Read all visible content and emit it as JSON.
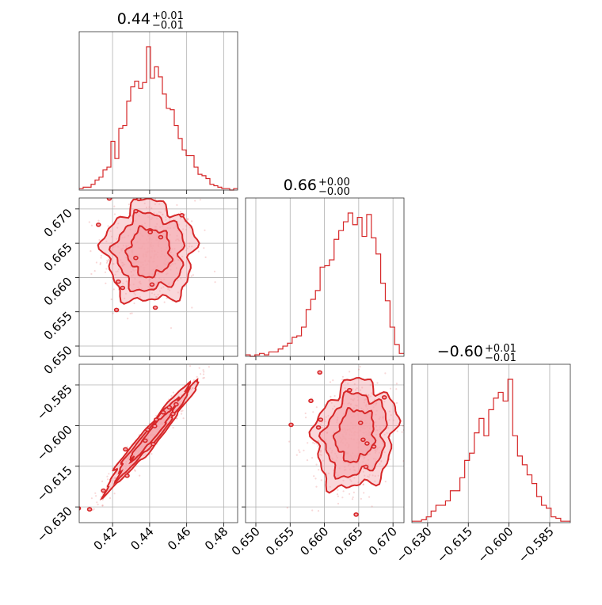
{
  "chart_data": {
    "type": "corner",
    "color": "#d62728",
    "fill_color": "#f4a6ad",
    "parameters": [
      {
        "title_value": "0.44",
        "title_plus": "+0.01",
        "title_minus": "−0.01",
        "range": [
          0.402,
          0.4875
        ],
        "ticks": [
          0.42,
          0.44,
          0.46,
          0.48
        ],
        "tick_labels": [
          "0.42",
          "0.44",
          "0.46",
          "0.48"
        ],
        "hist_start": 0.402,
        "hist_end": 0.4875,
        "hist_counts": [
          1,
          2,
          2,
          4,
          7,
          9,
          14,
          16,
          34,
          22,
          43,
          45,
          62,
          72,
          76,
          71,
          75,
          100,
          78,
          86,
          79,
          67,
          57,
          56,
          45,
          36,
          28,
          24,
          24,
          16,
          11,
          10,
          8,
          4,
          3,
          2,
          1,
          1,
          0,
          1
        ]
      },
      {
        "title_value": "0.66",
        "title_plus": "+0.00",
        "title_minus": "−0.00",
        "range": [
          0.6485,
          0.6716
        ],
        "ticks": [
          0.65,
          0.655,
          0.66,
          0.665,
          0.67
        ],
        "tick_labels": [
          "0.650",
          "0.655",
          "0.660",
          "0.665",
          "0.670"
        ],
        "y_ticks": [
          0.65,
          0.655,
          0.66,
          0.665,
          0.67
        ],
        "y_tick_labels": [
          "0.650",
          "0.655",
          "0.660",
          "0.665",
          "0.670"
        ],
        "hist_start": 0.6485,
        "hist_end": 0.6716,
        "hist_counts": [
          1,
          0,
          1,
          2,
          1,
          3,
          3,
          5,
          7,
          9,
          13,
          14,
          20,
          32,
          39,
          45,
          61,
          62,
          66,
          80,
          86,
          92,
          98,
          90,
          95,
          82,
          97,
          81,
          70,
          50,
          38,
          20,
          8,
          2
        ]
      },
      {
        "title_value": "−0.60",
        "title_plus": "+0.01",
        "title_minus": "−0.01",
        "range": [
          -0.6358,
          -0.5774
        ],
        "ticks": [
          -0.63,
          -0.615,
          -0.6,
          -0.585
        ],
        "tick_labels": [
          "−0.630",
          "−0.615",
          "−0.600",
          "−0.585"
        ],
        "y_ticks": [
          -0.63,
          -0.615,
          -0.6,
          -0.585
        ],
        "y_tick_labels": [
          "−0.630",
          "−0.615",
          "−0.600",
          "−0.585"
        ],
        "hist_start": -0.6358,
        "hist_end": -0.5774,
        "hist_counts": [
          1,
          1,
          2,
          4,
          8,
          12,
          12,
          15,
          22,
          22,
          31,
          43,
          48,
          62,
          72,
          60,
          78,
          86,
          90,
          84,
          99,
          60,
          46,
          40,
          33,
          27,
          18,
          12,
          10,
          4,
          3,
          1,
          1
        ]
      }
    ],
    "pairs": [
      {
        "x": 0,
        "y": 1,
        "center": [
          0.44,
          0.6637
        ],
        "sd": [
          0.0115,
          0.0035
        ],
        "rho": 0.0
      },
      {
        "x": 0,
        "y": 2,
        "center": [
          0.441,
          -0.6035
        ],
        "sd": [
          0.0115,
          0.0095
        ],
        "rho": 0.97
      },
      {
        "x": 1,
        "y": 2,
        "center": [
          0.6645,
          -0.6035
        ],
        "sd": [
          0.0028,
          0.0095
        ],
        "rho": 0.15
      }
    ]
  }
}
